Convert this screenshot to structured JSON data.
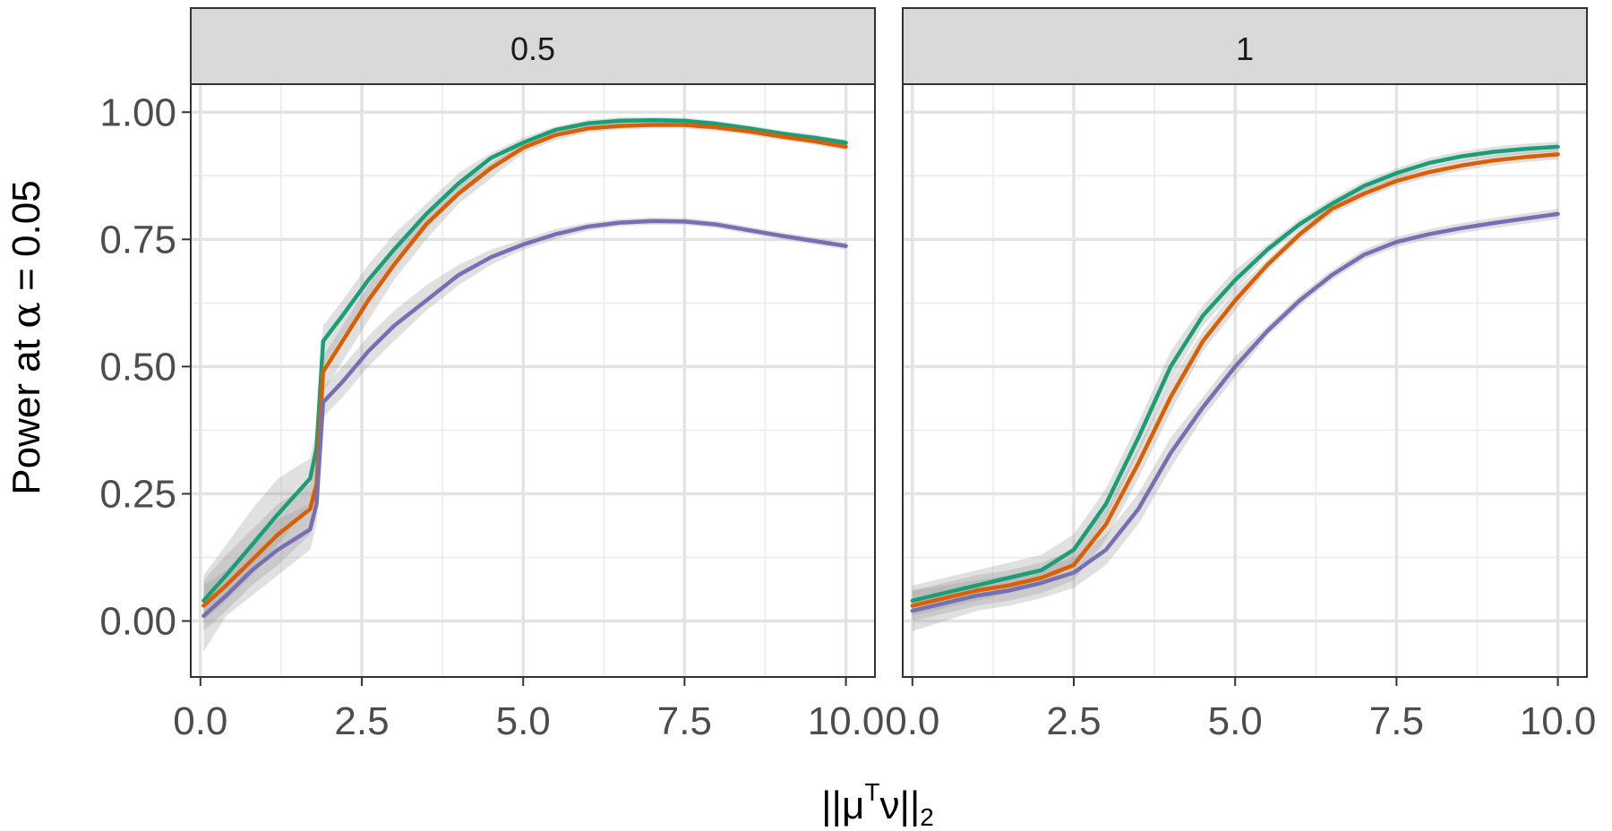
{
  "chart_data": {
    "type": "line",
    "ylabel_prefix": "Power at ",
    "ylabel_symbol": "α",
    "ylabel_suffix": " = 0.05",
    "xlabel_outer": "||",
    "xlabel_mu": "μ",
    "xlabel_T": "T",
    "xlabel_nu": "ν",
    "xlabel_close": "||",
    "xlabel_sub": "2",
    "xlim": [
      -0.15,
      10.45
    ],
    "ylim": [
      -0.11,
      1.055
    ],
    "x_ticks": [
      0,
      2.5,
      5,
      7.5,
      10
    ],
    "x_tick_labels": [
      "0.0",
      "2.5",
      "5.0",
      "7.5",
      "10.0"
    ],
    "x_minor": [
      1.25,
      3.75,
      6.25,
      8.75
    ],
    "y_ticks": [
      0,
      0.25,
      0.5,
      0.75,
      1.0
    ],
    "y_tick_labels": [
      "0.00",
      "0.25",
      "0.50",
      "0.75",
      "1.00"
    ],
    "y_minor": [
      0.125,
      0.375,
      0.625,
      0.875
    ],
    "grid": true,
    "panels": [
      {
        "strip": "0.5",
        "series": [
          {
            "name": "green",
            "color": "#1b9e77",
            "x": [
              0.05,
              0.4,
              0.8,
              1.2,
              1.7,
              1.8,
              1.9,
              2.2,
              2.6,
              3,
              3.5,
              4,
              4.5,
              5,
              5.5,
              6,
              6.5,
              7,
              7.5,
              8,
              8.5,
              9,
              9.5,
              10
            ],
            "y": [
              0.04,
              0.09,
              0.15,
              0.21,
              0.28,
              0.34,
              0.55,
              0.6,
              0.67,
              0.73,
              0.8,
              0.86,
              0.91,
              0.94,
              0.965,
              0.978,
              0.983,
              0.984,
              0.983,
              0.977,
              0.968,
              0.958,
              0.95,
              0.94
            ],
            "lower": [
              0.0,
              0.04,
              0.09,
              0.15,
              0.23,
              0.3,
              0.5,
              0.56,
              0.63,
              0.7,
              0.77,
              0.84,
              0.89,
              0.93,
              0.955,
              0.97,
              0.976,
              0.978,
              0.977,
              0.971,
              0.962,
              0.952,
              0.944,
              0.934
            ],
            "upper": [
              0.09,
              0.15,
              0.22,
              0.28,
              0.32,
              0.38,
              0.58,
              0.63,
              0.7,
              0.76,
              0.82,
              0.88,
              0.92,
              0.95,
              0.972,
              0.985,
              0.99,
              0.99,
              0.989,
              0.983,
              0.974,
              0.964,
              0.956,
              0.946
            ]
          },
          {
            "name": "orange",
            "color": "#d95f02",
            "x": [
              0.05,
              0.4,
              0.8,
              1.2,
              1.7,
              1.8,
              1.9,
              2.2,
              2.6,
              3,
              3.5,
              4,
              4.5,
              5,
              5.5,
              6,
              6.5,
              7,
              7.5,
              8,
              8.5,
              9,
              9.5,
              10
            ],
            "y": [
              0.03,
              0.07,
              0.12,
              0.17,
              0.22,
              0.27,
              0.49,
              0.55,
              0.63,
              0.7,
              0.78,
              0.84,
              0.89,
              0.93,
              0.955,
              0.968,
              0.973,
              0.975,
              0.975,
              0.97,
              0.962,
              0.952,
              0.943,
              0.932
            ],
            "lower": [
              -0.02,
              0.02,
              0.07,
              0.11,
              0.17,
              0.23,
              0.45,
              0.51,
              0.59,
              0.67,
              0.75,
              0.82,
              0.87,
              0.92,
              0.945,
              0.96,
              0.966,
              0.968,
              0.968,
              0.963,
              0.955,
              0.945,
              0.936,
              0.925
            ],
            "upper": [
              0.08,
              0.13,
              0.18,
              0.23,
              0.27,
              0.31,
              0.52,
              0.58,
              0.66,
              0.73,
              0.8,
              0.86,
              0.9,
              0.94,
              0.963,
              0.975,
              0.98,
              0.982,
              0.982,
              0.977,
              0.969,
              0.959,
              0.95,
              0.939
            ]
          },
          {
            "name": "purple",
            "color": "#7570b3",
            "x": [
              0.05,
              0.4,
              0.8,
              1.2,
              1.7,
              1.8,
              1.9,
              2.2,
              2.6,
              3,
              3.5,
              4,
              4.5,
              5,
              5.5,
              6,
              6.5,
              7,
              7.5,
              8,
              8.5,
              9,
              9.5,
              10
            ],
            "y": [
              0.01,
              0.05,
              0.1,
              0.14,
              0.18,
              0.23,
              0.43,
              0.47,
              0.53,
              0.58,
              0.63,
              0.68,
              0.715,
              0.74,
              0.76,
              0.775,
              0.783,
              0.786,
              0.785,
              0.779,
              0.768,
              0.757,
              0.747,
              0.737
            ],
            "lower": [
              -0.06,
              0.01,
              0.05,
              0.09,
              0.14,
              0.19,
              0.4,
              0.44,
              0.5,
              0.55,
              0.61,
              0.66,
              0.7,
              0.73,
              0.75,
              0.767,
              0.776,
              0.779,
              0.778,
              0.772,
              0.761,
              0.75,
              0.74,
              0.73
            ],
            "upper": [
              0.07,
              0.1,
              0.15,
              0.2,
              0.23,
              0.27,
              0.46,
              0.5,
              0.56,
              0.61,
              0.66,
              0.7,
              0.73,
              0.75,
              0.77,
              0.783,
              0.79,
              0.793,
              0.792,
              0.786,
              0.775,
              0.764,
              0.754,
              0.744
            ]
          }
        ]
      },
      {
        "strip": "1",
        "series": [
          {
            "name": "green",
            "color": "#1b9e77",
            "x": [
              0,
              0.5,
              1,
              1.5,
              2,
              2.5,
              3,
              3.5,
              4,
              4.5,
              5,
              5.5,
              6,
              6.5,
              7,
              7.5,
              8,
              8.5,
              9,
              9.5,
              10
            ],
            "y": [
              0.04,
              0.055,
              0.07,
              0.085,
              0.1,
              0.14,
              0.23,
              0.36,
              0.5,
              0.6,
              0.67,
              0.73,
              0.78,
              0.82,
              0.855,
              0.88,
              0.9,
              0.913,
              0.922,
              0.928,
              0.932
            ],
            "lower": [
              0.01,
              0.025,
              0.04,
              0.055,
              0.07,
              0.11,
              0.2,
              0.33,
              0.47,
              0.58,
              0.65,
              0.72,
              0.77,
              0.81,
              0.845,
              0.87,
              0.89,
              0.903,
              0.912,
              0.918,
              0.922
            ],
            "upper": [
              0.07,
              0.085,
              0.1,
              0.115,
              0.13,
              0.17,
              0.26,
              0.39,
              0.53,
              0.62,
              0.69,
              0.74,
              0.79,
              0.83,
              0.865,
              0.89,
              0.91,
              0.923,
              0.932,
              0.938,
              0.942
            ]
          },
          {
            "name": "orange",
            "color": "#d95f02",
            "x": [
              0,
              0.5,
              1,
              1.5,
              2,
              2.5,
              3,
              3.5,
              4,
              4.5,
              5,
              5.5,
              6,
              6.5,
              7,
              7.5,
              8,
              8.5,
              9,
              9.5,
              10
            ],
            "y": [
              0.03,
              0.045,
              0.06,
              0.07,
              0.085,
              0.11,
              0.19,
              0.31,
              0.44,
              0.55,
              0.63,
              0.7,
              0.76,
              0.81,
              0.84,
              0.865,
              0.882,
              0.895,
              0.905,
              0.912,
              0.917
            ],
            "lower": [
              0.0,
              0.015,
              0.03,
              0.04,
              0.055,
              0.08,
              0.16,
              0.28,
              0.41,
              0.53,
              0.61,
              0.69,
              0.75,
              0.8,
              0.83,
              0.855,
              0.872,
              0.885,
              0.895,
              0.902,
              0.907
            ],
            "upper": [
              0.06,
              0.075,
              0.09,
              0.1,
              0.115,
              0.14,
              0.22,
              0.34,
              0.47,
              0.57,
              0.65,
              0.71,
              0.77,
              0.82,
              0.85,
              0.875,
              0.892,
              0.905,
              0.915,
              0.922,
              0.927
            ]
          },
          {
            "name": "purple",
            "color": "#7570b3",
            "x": [
              0,
              0.5,
              1,
              1.5,
              2,
              2.5,
              3,
              3.5,
              4,
              4.5,
              5,
              5.5,
              6,
              6.5,
              7,
              7.5,
              8,
              8.5,
              9,
              9.5,
              10
            ],
            "y": [
              0.02,
              0.035,
              0.05,
              0.06,
              0.075,
              0.095,
              0.14,
              0.22,
              0.33,
              0.42,
              0.5,
              0.57,
              0.63,
              0.68,
              0.72,
              0.745,
              0.76,
              0.772,
              0.782,
              0.791,
              0.8
            ],
            "lower": [
              -0.02,
              0.0,
              0.02,
              0.03,
              0.045,
              0.065,
              0.11,
              0.19,
              0.3,
              0.4,
              0.48,
              0.56,
              0.62,
              0.67,
              0.71,
              0.735,
              0.75,
              0.762,
              0.772,
              0.781,
              0.79
            ],
            "upper": [
              0.06,
              0.07,
              0.08,
              0.09,
              0.105,
              0.125,
              0.17,
              0.25,
              0.36,
              0.44,
              0.52,
              0.58,
              0.64,
              0.69,
              0.73,
              0.755,
              0.77,
              0.782,
              0.792,
              0.801,
              0.81
            ]
          }
        ]
      }
    ]
  }
}
